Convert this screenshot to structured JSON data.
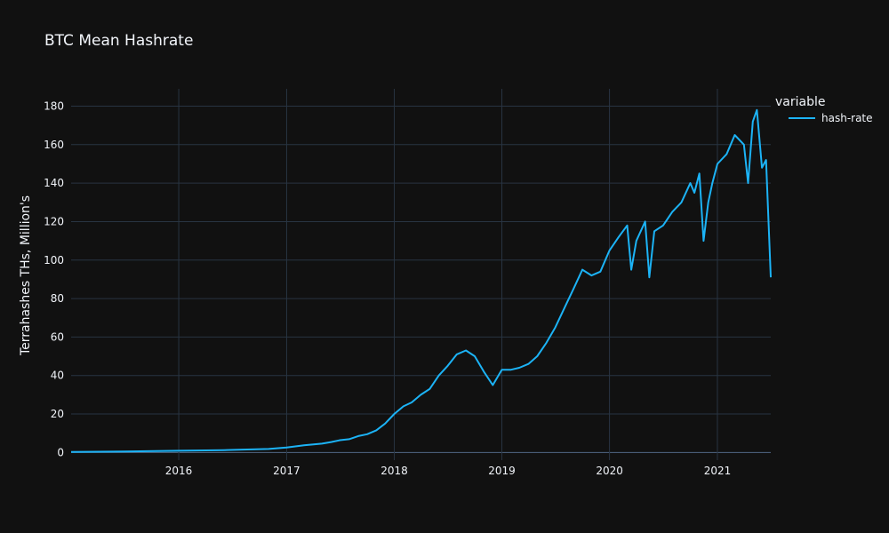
{
  "chart_data": {
    "type": "line",
    "title": "BTC Mean Hashrate",
    "xlabel": "",
    "ylabel": "Terrahashes THs, Million's",
    "xlim": [
      "2015-01-01",
      "2021-07-01"
    ],
    "ylim": [
      -4,
      189
    ],
    "x_ticks": [
      "2016",
      "2017",
      "2018",
      "2019",
      "2020",
      "2021"
    ],
    "y_ticks": [
      0,
      20,
      40,
      60,
      80,
      100,
      120,
      140,
      160,
      180
    ],
    "grid": true,
    "legend": {
      "title": "variable",
      "position": "top-right"
    },
    "colors": {
      "background": "#111111",
      "grid": "#283442",
      "text": "#f2f5fa",
      "line": "#1cb3f6"
    },
    "series": [
      {
        "name": "hash-rate",
        "x": [
          "2015-01-01",
          "2015-07-01",
          "2016-01-01",
          "2016-06-01",
          "2016-11-01",
          "2017-01-01",
          "2017-03-01",
          "2017-05-01",
          "2017-06-01",
          "2017-07-01",
          "2017-08-01",
          "2017-09-01",
          "2017-10-01",
          "2017-11-01",
          "2017-12-01",
          "2018-01-01",
          "2018-02-01",
          "2018-03-01",
          "2018-04-01",
          "2018-05-01",
          "2018-06-01",
          "2018-07-01",
          "2018-08-01",
          "2018-09-01",
          "2018-10-01",
          "2018-11-01",
          "2018-12-01",
          "2019-01-01",
          "2019-02-01",
          "2019-03-01",
          "2019-04-01",
          "2019-05-01",
          "2019-06-01",
          "2019-07-01",
          "2019-08-01",
          "2019-09-01",
          "2019-10-01",
          "2019-11-01",
          "2019-12-01",
          "2020-01-01",
          "2020-02-01",
          "2020-03-01",
          "2020-03-15",
          "2020-04-01",
          "2020-05-01",
          "2020-05-15",
          "2020-06-01",
          "2020-07-01",
          "2020-08-01",
          "2020-09-01",
          "2020-10-01",
          "2020-10-15",
          "2020-11-01",
          "2020-11-15",
          "2020-12-01",
          "2020-12-15",
          "2021-01-01",
          "2021-02-01",
          "2021-02-15",
          "2021-03-01",
          "2021-04-01",
          "2021-04-15",
          "2021-05-01",
          "2021-05-15",
          "2021-06-01",
          "2021-06-15",
          "2021-07-01"
        ],
        "values": [
          0.3,
          0.5,
          0.9,
          1.2,
          1.8,
          2.6,
          3.7,
          4.6,
          5.4,
          6.4,
          6.9,
          8.5,
          9.5,
          11.5,
          15,
          20,
          24,
          26,
          30,
          33,
          40,
          45,
          51,
          53,
          50,
          42,
          35,
          43,
          43,
          44,
          46,
          50,
          57,
          65,
          75,
          85,
          95,
          92,
          94,
          105,
          112,
          118,
          95,
          110,
          120,
          91,
          115,
          118,
          125,
          130,
          140,
          135,
          145,
          110,
          130,
          140,
          150,
          155,
          160,
          165,
          160,
          140,
          172,
          178,
          148,
          152,
          91
        ]
      }
    ]
  }
}
